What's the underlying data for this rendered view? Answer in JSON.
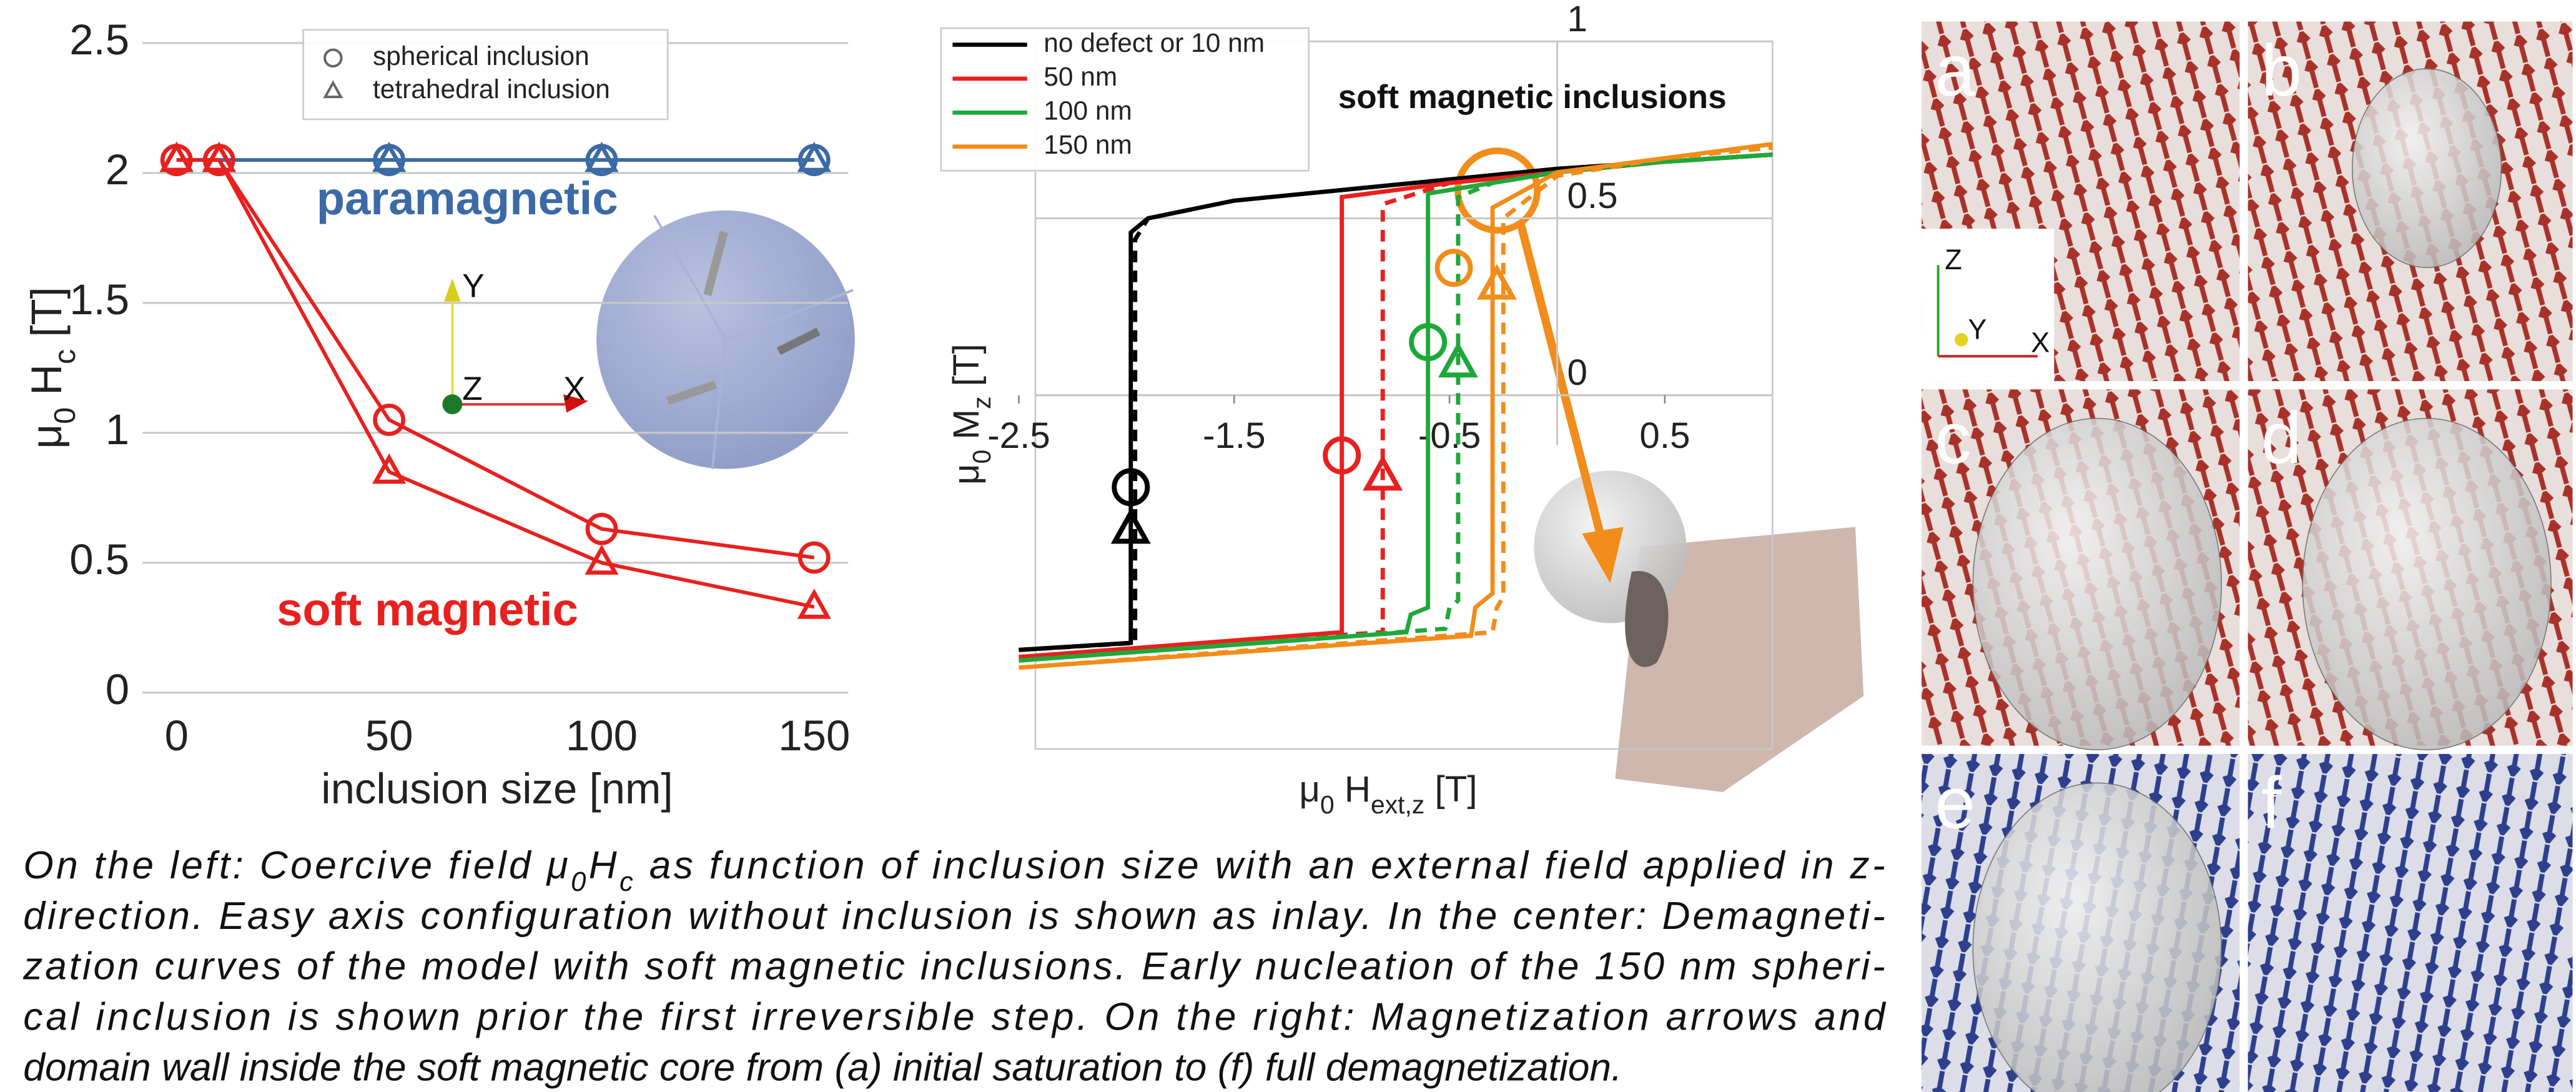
{
  "chart_data": [
    {
      "type": "line",
      "ylabel": [
        {
          "text": "μ"
        },
        {
          "text": "0",
          "sub": true
        },
        {
          "text": " H"
        },
        {
          "text": "c",
          "sub": true
        },
        {
          "text": " [T]"
        }
      ],
      "xlabel": "inclusion size [nm]",
      "x": [
        0,
        10,
        50,
        100,
        150
      ],
      "xlim": [
        -8,
        158
      ],
      "ylim": [
        0,
        2.5
      ],
      "xticks": [
        0,
        50,
        100,
        150
      ],
      "yticks": [
        0,
        0.5,
        1,
        1.5,
        2,
        2.5
      ],
      "grid": true,
      "legend": [
        {
          "label": "spherical inclusion",
          "marker": "circle"
        },
        {
          "label": "tetrahedral inclusion",
          "marker": "triangle"
        }
      ],
      "series": [
        {
          "group": "paramagnetic",
          "color": "#3b6aa6",
          "marker": "circle",
          "values": [
            2.05,
            2.05,
            2.05,
            2.05,
            2.05
          ]
        },
        {
          "color": "#3b6aa6",
          "marker": "triangle",
          "values": [
            2.05,
            2.05,
            2.05,
            2.05,
            2.05
          ]
        },
        {
          "group": "soft magnetic",
          "color": "#e8201e",
          "marker": "circle",
          "values": [
            2.05,
            2.05,
            1.05,
            0.63,
            0.52
          ]
        },
        {
          "color": "#e8201e",
          "marker": "triangle",
          "values": [
            2.05,
            2.05,
            0.85,
            0.5,
            0.33
          ]
        }
      ],
      "inlay_axes": [
        "Y",
        "Z",
        "X"
      ]
    },
    {
      "type": "line",
      "annotation": "soft magnetic inclusions",
      "ylabel": [
        {
          "text": "μ"
        },
        {
          "text": "0",
          "sub": true
        },
        {
          "text": " M"
        },
        {
          "text": "z",
          "sub": true
        },
        {
          "text": " [T]"
        }
      ],
      "xlabel": [
        {
          "text": "μ"
        },
        {
          "text": "0",
          "sub": true
        },
        {
          "text": " H"
        },
        {
          "text": "ext,z",
          "sub": true
        },
        {
          "text": " [T]"
        }
      ],
      "xlim": [
        -2.5,
        1
      ],
      "ylim": [
        -1,
        1
      ],
      "xticks": [
        -2.5,
        -1.5,
        -0.5,
        0.5
      ],
      "yticks": [
        0,
        0.5,
        1
      ],
      "grid": true,
      "series": [
        {
          "name": "no defect or 10 nm",
          "color": "#000000",
          "x": [
            -2.5,
            -1.98,
            -1.98,
            -1.9,
            -1.5,
            -1,
            -0.5,
            0,
            0.5,
            1
          ],
          "values": [
            -0.72,
            -0.7,
            0.46,
            0.5,
            0.55,
            0.58,
            0.61,
            0.64,
            0.66,
            0.68
          ],
          "marker": "circle",
          "marker_x": -1.98,
          "marker_y": -0.26
        },
        {
          "color": "#000000",
          "dash": true,
          "x": [
            -2.5,
            -1.96,
            -1.96,
            -1.9
          ],
          "values": [
            -0.72,
            -0.7,
            0.44,
            0.5
          ],
          "marker": "triangle",
          "marker_x": -1.98,
          "marker_y": -0.38
        },
        {
          "name": "50 nm",
          "color": "#e8201e",
          "x": [
            -2.5,
            -1,
            -1,
            -0.5,
            0,
            0.5,
            1
          ],
          "values": [
            -0.74,
            -0.67,
            0.56,
            0.6,
            0.63,
            0.66,
            0.68
          ],
          "marker": "circle",
          "marker_x": -1,
          "marker_y": -0.17
        },
        {
          "color": "#e8201e",
          "dash": true,
          "x": [
            -2.5,
            -0.81,
            -0.81,
            -0.5
          ],
          "values": [
            -0.74,
            -0.67,
            0.54,
            0.6
          ],
          "marker": "triangle",
          "marker_x": -0.81,
          "marker_y": -0.23
        },
        {
          "name": "100 nm",
          "color": "#1fa83a",
          "x": [
            -2.5,
            -0.7,
            -0.68,
            -0.6,
            -0.6,
            -0.3,
            0,
            0.5,
            1
          ],
          "values": [
            -0.75,
            -0.67,
            -0.62,
            -0.6,
            0.57,
            0.6,
            0.63,
            0.66,
            0.68
          ],
          "marker": "circle",
          "marker_x": -0.6,
          "marker_y": 0.15
        },
        {
          "color": "#1fa83a",
          "dash": true,
          "x": [
            -2.5,
            -0.52,
            -0.5,
            -0.46,
            -0.46,
            -0.3
          ],
          "values": [
            -0.75,
            -0.66,
            -0.6,
            -0.58,
            0.56,
            0.6
          ],
          "marker": "triangle",
          "marker_x": -0.46,
          "marker_y": 0.09
        },
        {
          "name": "150 nm",
          "color": "#f28c1a",
          "x": [
            -2.5,
            -0.4,
            -0.38,
            -0.3,
            -0.3,
            0,
            0.5,
            1
          ],
          "values": [
            -0.77,
            -0.68,
            -0.6,
            -0.56,
            0.53,
            0.63,
            0.67,
            0.71
          ],
          "marker": "circle",
          "marker_x": -0.48,
          "marker_y": 0.36
        },
        {
          "color": "#f28c1a",
          "dash": true,
          "x": [
            -2.5,
            -0.3,
            -0.28,
            -0.25,
            -0.25,
            0,
            0.5,
            1
          ],
          "values": [
            -0.77,
            -0.67,
            -0.6,
            -0.57,
            0.5,
            0.62,
            0.67,
            0.7
          ],
          "marker": "triangle",
          "marker_x": -0.28,
          "marker_y": 0.31
        }
      ]
    }
  ],
  "panels": {
    "labels": [
      "a",
      "b",
      "c",
      "d",
      "e",
      "f"
    ],
    "triad": [
      "Z",
      "Y",
      "X"
    ]
  },
  "caption": [
    [
      {
        "text": "On the left: Coercive field μ"
      },
      {
        "text": "0",
        "sub": true
      },
      {
        "text": "H"
      },
      {
        "text": "c",
        "sub": true
      },
      {
        "text": " as function of inclusion size with an external field applied in z-"
      }
    ],
    [
      {
        "text": "direction. Easy axis configuration without inclusion is shown as inlay. In the center: Demagneti-"
      }
    ],
    [
      {
        "text": "zation curves  of the model with soft magnetic inclusions. Early nucleation of the 150 nm spheri-"
      }
    ],
    [
      {
        "text": "cal inclusion is shown prior the first irreversible step. On the right: Magnetization arrows and"
      }
    ],
    [
      {
        "text": "domain wall inside the soft magnetic core from (a) initial saturation to (f) full demagnetization."
      }
    ]
  ]
}
